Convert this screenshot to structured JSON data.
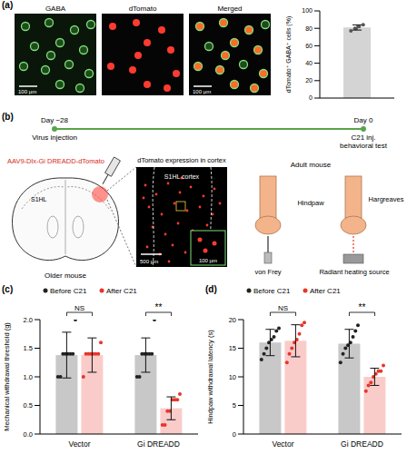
{
  "figure": {
    "a": {
      "label": "(a)",
      "images": [
        {
          "title": "GABA",
          "scale_bar": "100 µm"
        },
        {
          "title": "dTomato"
        },
        {
          "title": "Merged",
          "scale_bar": "100 µm"
        }
      ]
    },
    "b": {
      "label": "(b)",
      "timeline": {
        "start": {
          "day": "Day −28",
          "event": [
            "Virus injection"
          ]
        },
        "end": {
          "day": "Day 0",
          "event": [
            "C21 inj.",
            "behavioral test"
          ]
        }
      },
      "virus": "AAV9-Dlx-Gi DREADD-dTomato",
      "brain": {
        "region": "S1HL",
        "caption": "Older mouse"
      },
      "cortex_image": {
        "title": "dTomato expression in cortex",
        "region": "S1HL cortex",
        "scale_bar": "500 µm",
        "inset_scale_bar": "100 µm"
      },
      "behavior": {
        "animal": "Adult mouse",
        "paw": "Hindpaw",
        "tests": [
          "von Frey",
          "Hargreaves"
        ],
        "heat_source": "Radiant heating source"
      }
    }
  },
  "chart_data": [
    {
      "type": "bar",
      "ylabel": "dTomato⁺ GABA⁺ cells (%)",
      "categories": [
        null
      ],
      "series": [
        {
          "color": "#555555",
          "values": [
            81
          ],
          "error": [
            3
          ],
          "points": [
            [
              77,
              80,
              82,
              84
            ]
          ]
        }
      ],
      "ylim": [
        0,
        100
      ],
      "yticks": [
        0,
        20,
        40,
        60,
        80,
        100
      ]
    },
    {
      "type": "bar",
      "panel_label": "(c)",
      "ylabel": "Mechanical withdrawal threshold (g)",
      "categories": [
        "Vector",
        "Gi DREADD"
      ],
      "series": [
        {
          "name": "Before C21",
          "color": "#222222",
          "values": [
            1.38,
            1.38
          ],
          "error": [
            0.4,
            0.3
          ],
          "points": [
            [
              1.0,
              1.0,
              1.4,
              1.4,
              1.4,
              1.4,
              1.4,
              2.0
            ],
            [
              1.0,
              1.0,
              1.4,
              1.4,
              1.4,
              1.4,
              1.4,
              2.0
            ]
          ]
        },
        {
          "name": "After C21",
          "color": "#e8352b",
          "values": [
            1.38,
            0.45
          ],
          "error": [
            0.3,
            0.2
          ],
          "points": [
            [
              1.0,
              1.4,
              1.4,
              1.4,
              1.4,
              1.4,
              1.4,
              1.6
            ],
            [
              0.16,
              0.16,
              0.4,
              0.4,
              0.6,
              0.6,
              0.6,
              0.7
            ]
          ]
        }
      ],
      "ylim": [
        0,
        2
      ],
      "yticks": [
        {
          "value": 0,
          "label": "0.0"
        },
        0.5,
        {
          "value": 1,
          "label": "1.0"
        },
        1.5,
        {
          "value": 2,
          "label": "2.0"
        }
      ],
      "annotations": [
        "NS",
        "**"
      ],
      "legend": "top"
    },
    {
      "type": "bar",
      "panel_label": "(d)",
      "ylabel": "Hindpaw withdrawal latency (s)",
      "categories": [
        "Vector",
        "Gi DREADD"
      ],
      "series": [
        {
          "name": "Before C21",
          "color": "#222222",
          "values": [
            16,
            15.8
          ],
          "error": [
            2.3,
            2.5
          ],
          "points": [
            [
              13,
              14,
              15,
              16,
              16.5,
              17,
              18,
              18.5
            ],
            [
              12.5,
              14,
              15,
              15.5,
              16,
              17,
              18,
              19
            ]
          ]
        },
        {
          "name": "After C21",
          "color": "#e8352b",
          "values": [
            16.3,
            10
          ],
          "error": [
            2.8,
            1.5
          ],
          "points": [
            [
              12.5,
              14,
              15,
              16,
              16.5,
              17.5,
              19,
              19.5
            ],
            [
              7.5,
              8.5,
              9,
              10,
              10.5,
              11,
              11,
              12
            ]
          ]
        }
      ],
      "ylim": [
        0,
        20
      ],
      "yticks": [
        0,
        5,
        10,
        15,
        20
      ],
      "annotations": [
        "NS",
        "**"
      ],
      "legend": "top"
    }
  ]
}
